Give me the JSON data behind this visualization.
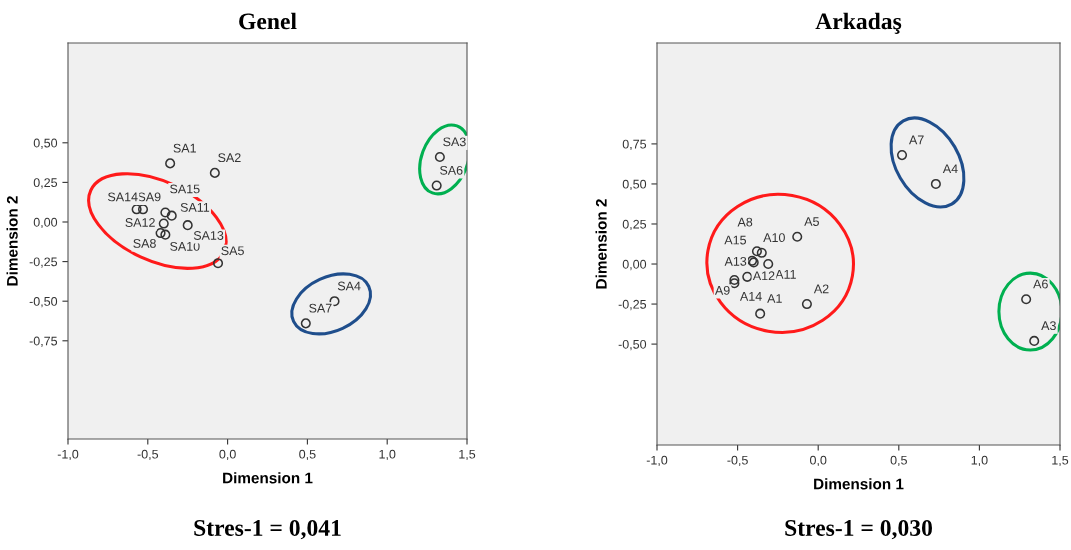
{
  "chart_data": [
    {
      "type": "scatter",
      "title": "Genel",
      "xlabel": "Dimension 1",
      "ylabel": "Dimension 2",
      "marker": "circle",
      "xlim": [
        -1.0,
        1.5
      ],
      "ylim": [
        -1.37,
        1.13
      ],
      "xticks": [
        {
          "value": -1.0,
          "label": "-1,0"
        },
        {
          "value": -0.5,
          "label": "-0,5"
        },
        {
          "value": 0.0,
          "label": "0,0"
        },
        {
          "value": 0.5,
          "label": "0,5"
        },
        {
          "value": 1.0,
          "label": "1,0"
        },
        {
          "value": 1.5,
          "label": "1,5"
        }
      ],
      "yticks": [
        {
          "value": 0.5,
          "label": "0,50"
        },
        {
          "value": 0.25,
          "label": "0,25"
        },
        {
          "value": 0.0,
          "label": "0,00"
        },
        {
          "value": -0.25,
          "label": "-0,25"
        },
        {
          "value": -0.5,
          "label": "-0,50"
        },
        {
          "value": -0.75,
          "label": "-0,75"
        }
      ],
      "series": [
        {
          "color": "#333333",
          "x": [
            -0.36,
            -0.08,
            1.33,
            0.67,
            -0.06,
            1.31,
            0.49,
            -0.42,
            -0.53,
            -0.39,
            -0.35,
            -0.4,
            -0.25,
            -0.57,
            -0.39
          ],
          "values": [
            0.37,
            0.31,
            0.41,
            -0.5,
            -0.26,
            0.23,
            -0.64,
            -0.07,
            0.08,
            -0.08,
            0.04,
            -0.01,
            -0.02,
            0.08,
            0.06
          ]
        }
      ],
      "annotations": [
        {
          "text": "SA1",
          "x": -0.36,
          "y": 0.37
        },
        {
          "text": "SA2",
          "x": -0.08,
          "y": 0.31
        },
        {
          "text": "SA3",
          "x": 1.33,
          "y": 0.41
        },
        {
          "text": "SA4",
          "x": 0.67,
          "y": -0.5
        },
        {
          "text": "SA5",
          "x": -0.06,
          "y": -0.26
        },
        {
          "text": "SA6",
          "x": 1.31,
          "y": 0.23
        },
        {
          "text": "SA7",
          "x": 0.49,
          "y": -0.64
        },
        {
          "text": "SA8",
          "x": -0.42,
          "y": -0.07
        },
        {
          "text": "SA9",
          "x": -0.53,
          "y": 0.08
        },
        {
          "text": "SA10",
          "x": -0.39,
          "y": -0.08
        },
        {
          "text": "SA11",
          "x": -0.35,
          "y": 0.04
        },
        {
          "text": "SA12",
          "x": -0.4,
          "y": -0.01
        },
        {
          "text": "SA13",
          "x": -0.25,
          "y": -0.02
        },
        {
          "text": "SA14",
          "x": -0.57,
          "y": 0.08
        },
        {
          "text": "SA15",
          "x": -0.39,
          "y": 0.06
        },
        "Stres-1 = 0,041"
      ]
    },
    {
      "type": "scatter",
      "title": "Arkadaş",
      "xlabel": "Dimension 1",
      "ylabel": "Dimension 2",
      "marker": "circle",
      "xlim": [
        -1.0,
        1.5
      ],
      "ylim": [
        -1.13,
        1.38
      ],
      "xticks": [
        {
          "value": -1.0,
          "label": "-1,0"
        },
        {
          "value": -0.5,
          "label": "-0,5"
        },
        {
          "value": 0.0,
          "label": "0,0"
        },
        {
          "value": 0.5,
          "label": "0,5"
        },
        {
          "value": 1.0,
          "label": "1,0"
        },
        {
          "value": 1.5,
          "label": "1,5"
        }
      ],
      "yticks": [
        {
          "value": 0.75,
          "label": "0,75"
        },
        {
          "value": 0.5,
          "label": "0,50"
        },
        {
          "value": 0.25,
          "label": "0,25"
        },
        {
          "value": 0.0,
          "label": "0,00"
        },
        {
          "value": -0.25,
          "label": "-0,25"
        },
        {
          "value": -0.5,
          "label": "-0,50"
        }
      ],
      "series": [
        {
          "color": "#333333",
          "x": [
            -0.36,
            -0.07,
            1.34,
            0.73,
            -0.13,
            1.29,
            0.52,
            -0.38,
            -0.52,
            -0.35,
            -0.31,
            -0.44,
            -0.4,
            -0.52,
            -0.41
          ],
          "values": [
            -0.31,
            -0.25,
            -0.48,
            0.5,
            0.17,
            -0.22,
            0.68,
            0.08,
            -0.1,
            0.07,
            0.0,
            -0.08,
            0.01,
            -0.12,
            0.02
          ]
        }
      ],
      "annotations": [
        {
          "text": "A1",
          "x": -0.36,
          "y": -0.31
        },
        {
          "text": "A2",
          "x": -0.07,
          "y": -0.25
        },
        {
          "text": "A3",
          "x": 1.34,
          "y": -0.48
        },
        {
          "text": "A4",
          "x": 0.73,
          "y": 0.5
        },
        {
          "text": "A5",
          "x": -0.13,
          "y": 0.17
        },
        {
          "text": "A6",
          "x": 1.29,
          "y": -0.22
        },
        {
          "text": "A7",
          "x": 0.52,
          "y": 0.68
        },
        {
          "text": "A8",
          "x": -0.38,
          "y": 0.08
        },
        {
          "text": "A9",
          "x": -0.52,
          "y": -0.1
        },
        {
          "text": "A10",
          "x": -0.35,
          "y": 0.07
        },
        {
          "text": "A11",
          "x": -0.31,
          "y": 0.0
        },
        {
          "text": "A12",
          "x": -0.44,
          "y": -0.08
        },
        {
          "text": "A13",
          "x": -0.4,
          "y": 0.01
        },
        {
          "text": "A14",
          "x": -0.52,
          "y": -0.12
        },
        {
          "text": "A15",
          "x": -0.41,
          "y": 0.02
        },
        "Stres-1 = 0,030"
      ]
    }
  ]
}
